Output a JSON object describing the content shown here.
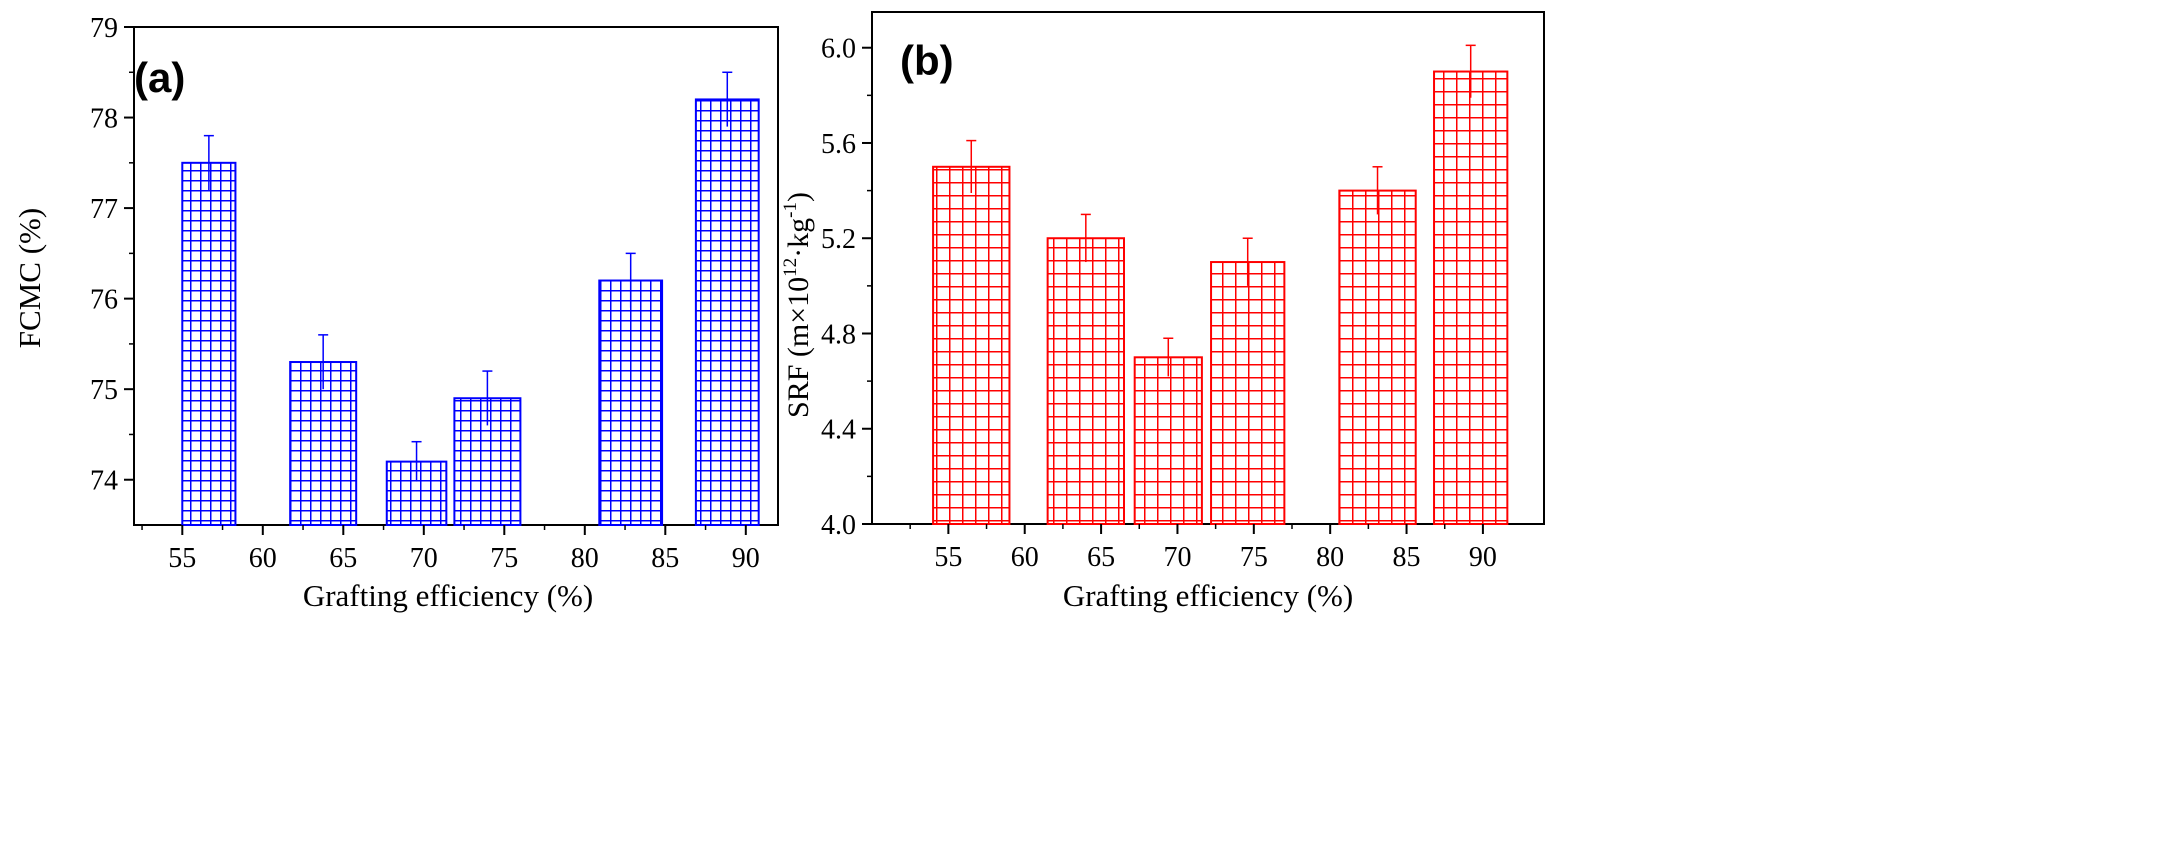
{
  "chart_data": [
    {
      "type": "bar",
      "panel_label": "(a)",
      "xlabel": "Grafting efficiency (%)",
      "ylabel": "FCMC (%)",
      "xlim": [
        52,
        92
      ],
      "ylim": [
        73.5,
        79
      ],
      "xticks": [
        "55",
        "60",
        "65",
        "70",
        "75",
        "80",
        "85",
        "90"
      ],
      "yticks": [
        "74",
        "75",
        "76",
        "77",
        "78",
        "79"
      ],
      "x_bar_ranges": [
        [
          55.0,
          58.3
        ],
        [
          61.7,
          65.8
        ],
        [
          67.7,
          71.4
        ],
        [
          71.9,
          76.0
        ],
        [
          80.9,
          84.8
        ],
        [
          86.9,
          90.8
        ]
      ],
      "values": [
        77.5,
        75.3,
        74.2,
        74.9,
        76.2,
        78.2
      ],
      "errors": [
        0.3,
        0.3,
        0.22,
        0.3,
        0.3,
        0.3
      ],
      "color": "#0000ff",
      "grid": false
    },
    {
      "type": "bar",
      "panel_label": "(b)",
      "xlabel": "Grafting efficiency (%)",
      "ylabel": "SRF (m×10",
      "ylabel_sup1": "12",
      "ylabel_mid": "·kg",
      "ylabel_sup2": "-1",
      "ylabel_end": ")",
      "xlim": [
        50,
        94
      ],
      "ylim": [
        4.0,
        6.15
      ],
      "xticks": [
        "55",
        "60",
        "65",
        "70",
        "75",
        "80",
        "85",
        "90"
      ],
      "yticks": [
        "4.0",
        "4.4",
        "4.8",
        "5.2",
        "5.6",
        "6.0"
      ],
      "x_bar_ranges": [
        [
          54.0,
          59.0
        ],
        [
          61.5,
          66.5
        ],
        [
          67.2,
          71.6
        ],
        [
          72.2,
          77.0
        ],
        [
          80.6,
          85.6
        ],
        [
          86.8,
          91.6
        ]
      ],
      "values": [
        5.5,
        5.2,
        4.7,
        5.1,
        5.4,
        5.9
      ],
      "errors": [
        0.11,
        0.1,
        0.08,
        0.1,
        0.1,
        0.11
      ],
      "color": "#ff0000",
      "grid": false
    }
  ]
}
